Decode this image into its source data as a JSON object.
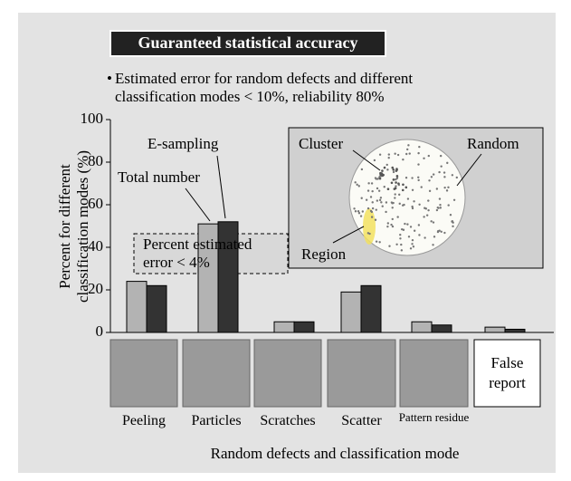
{
  "chart_data": {
    "type": "bar",
    "title": "Guaranteed statistical accuracy",
    "subtitle": "Estimated error for random defects and different classification modes < 10%, reliability 80%",
    "y_label": [
      "Percent for different",
      "classification modes (%)"
    ],
    "x_label": "Random defects and classification mode",
    "categories": [
      "Peeling",
      "Particles",
      "Scratches",
      "Scatter",
      "Pattern residue",
      "False report"
    ],
    "series": [
      {
        "name": "Total number",
        "color": "#b3b3b3",
        "values": [
          24,
          51,
          5,
          19,
          5,
          2.5
        ]
      },
      {
        "name": "E-sampling",
        "color": "#333333",
        "values": [
          22,
          52,
          5,
          22,
          3.5,
          1.5
        ]
      }
    ],
    "ylim": [
      0,
      100
    ],
    "yticks": [
      0,
      20,
      40,
      60,
      80,
      100
    ],
    "annotations": {
      "error_box": "Percent estimated error < 4%",
      "cluster": "Cluster",
      "random": "Random",
      "region": "Region"
    }
  }
}
